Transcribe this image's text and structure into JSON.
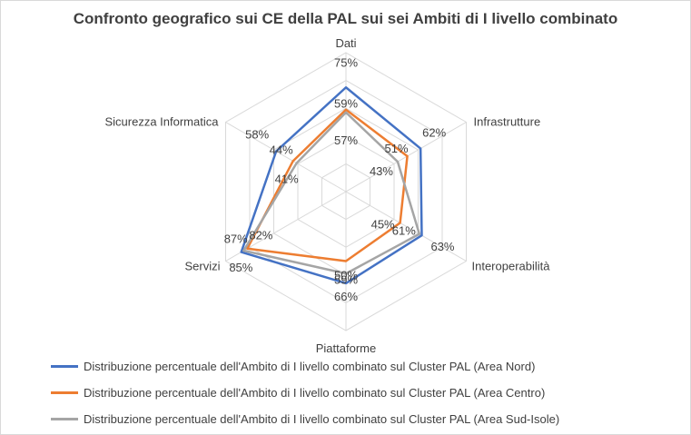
{
  "chart_data": {
    "type": "radar",
    "title": "Confronto geografico sui CE della PAL sui sei Ambiti di I livello combinato",
    "categories": [
      "Dati",
      "Infrastrutture",
      "Interoperabilità",
      "Piattaforme",
      "Servizi",
      "Sicurezza Informatica"
    ],
    "rmax": 100,
    "grid_levels": 5,
    "grid": true,
    "legend_position": "bottom",
    "series": [
      {
        "name": "Distribuzione percentuale dell'Ambito di I livello combinato sul Cluster PAL (Area Nord)",
        "color": "#4472c4",
        "values": [
          75,
          62,
          63,
          66,
          87,
          58
        ],
        "labels": [
          "75%",
          "62%",
          "63%",
          "66%",
          "87%",
          "58%"
        ]
      },
      {
        "name": "Distribuzione percentuale dell'Ambito di I livello combinato sul Cluster PAL (Area Centro)",
        "color": "#ed7d31",
        "values": [
          59,
          51,
          45,
          50,
          82,
          44
        ],
        "labels": [
          "59%",
          "51%",
          "45%",
          "50%",
          "82%",
          "44%"
        ]
      },
      {
        "name": "Distribuzione percentuale dell'Ambito di I livello combinato sul Cluster PAL (Area Sud-Isole)",
        "color": "#a5a5a5",
        "values": [
          57,
          43,
          61,
          59,
          85,
          41
        ],
        "labels": [
          "57%",
          "43%",
          "61%",
          "59%",
          "85%",
          "41%"
        ]
      }
    ]
  }
}
